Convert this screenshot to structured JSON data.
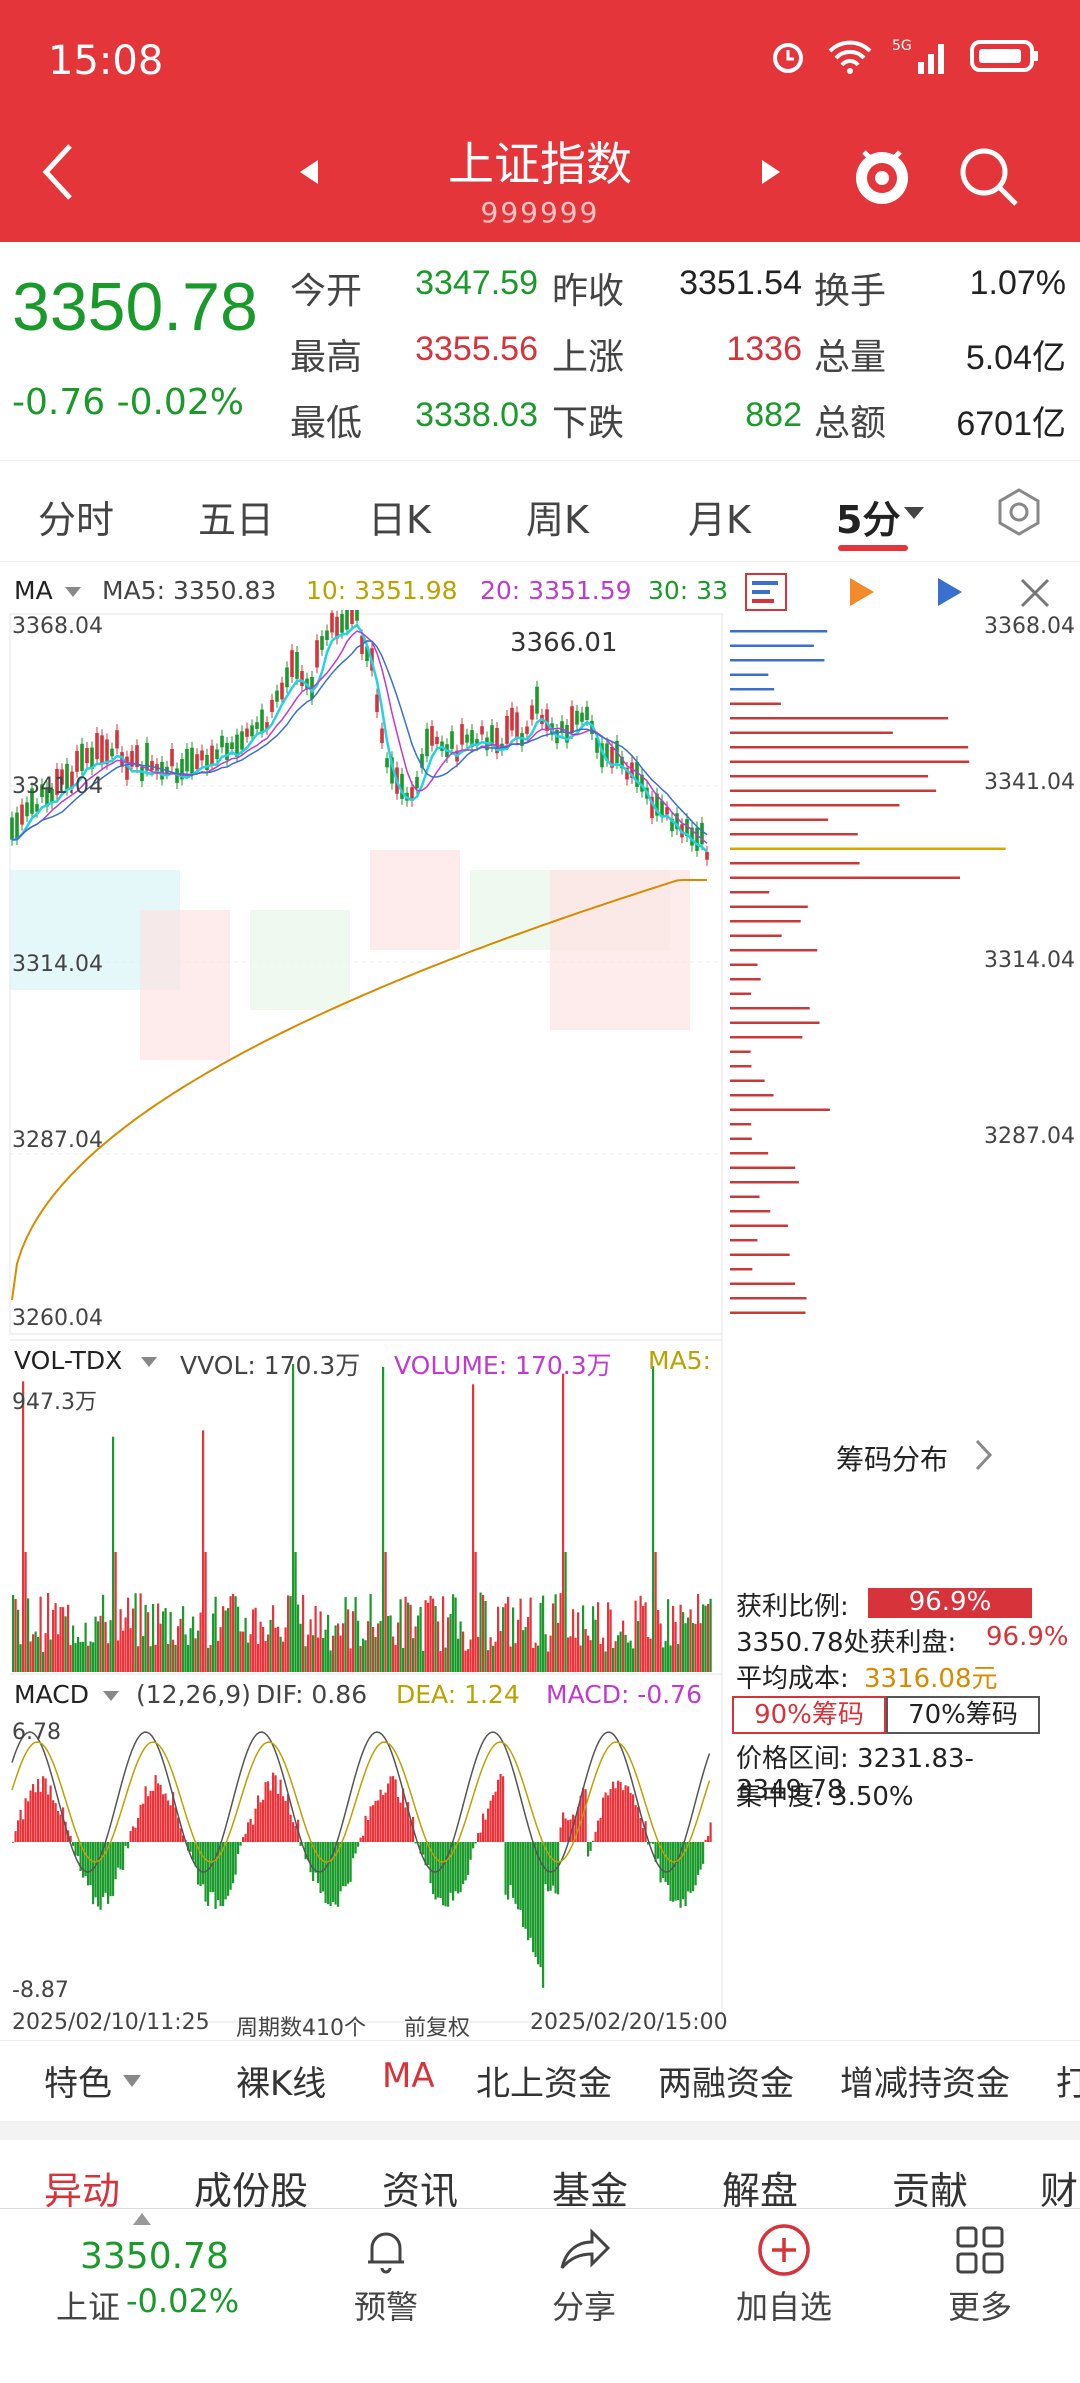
{
  "status": {
    "time": "15:08"
  },
  "header": {
    "title": "上证指数",
    "code": "999999"
  },
  "quote": {
    "price": "3350.78",
    "change": "-0.76 -0.02%",
    "rows": [
      {
        "l1": "今开",
        "v1": "3347.59",
        "l2": "昨收",
        "v2": "3351.54",
        "l3": "换手",
        "v3": "1.07%"
      },
      {
        "l1": "最高",
        "v1": "3355.56",
        "l2": "上涨",
        "v2": "1336",
        "l3": "总量",
        "v3": "5.04亿"
      },
      {
        "l1": "最低",
        "v1": "3338.03",
        "l2": "下跌",
        "v2": "882",
        "l3": "总额",
        "v3": "6701亿"
      }
    ]
  },
  "tabs": [
    "分时",
    "五日",
    "日K",
    "周K",
    "月K",
    "5分"
  ],
  "ma_row": {
    "sel": "MA",
    "ma5": "MA5: 3350.83",
    "ma10": "10: 3351.98",
    "ma20": "20: 3351.59",
    "ma30": "30: 33"
  },
  "price_axis": [
    "3368.04",
    "3341.04",
    "3314.04",
    "3287.04",
    "3260.04"
  ],
  "chart_peak": "3366.01",
  "vol_row": {
    "sel": "VOL-TDX",
    "vvol": "VVOL: 170.3万",
    "volume": "VOLUME: 170.3万",
    "ma5": "MA5:",
    "max": "947.3万"
  },
  "macd_row": {
    "sel": "MACD",
    "params": "(12,26,9)",
    "dif": "DIF: 0.86",
    "dea": "DEA: 1.24",
    "macd": "MACD: -0.76",
    "max": "6.78",
    "min": "-8.87"
  },
  "footer_row": {
    "start": "2025/02/10/11:25",
    "count": "周期数410个",
    "adjust": "前复权",
    "end": "2025/02/20/15:00"
  },
  "chip": {
    "title": "筹码分布",
    "profit_label": "获利比例:",
    "profit_pct": "96.9%",
    "profit_line": "3350.78处获利盘:",
    "profit_line_val": "96.9%",
    "avg_label": "平均成本:",
    "avg_val": "3316.08元",
    "btn90": "90%筹码",
    "btn70": "70%筹码",
    "range": "价格区间: 3231.83-3349.78",
    "concentration": "集中度: 3.50%",
    "axis": [
      "3368.04",
      "3341.04",
      "3314.04",
      "3287.04"
    ]
  },
  "menu1": {
    "feature": "特色",
    "items": [
      "裸K线",
      "MA",
      "北上资金",
      "两融资金",
      "增减持资金",
      "打"
    ]
  },
  "menu2": [
    "异动",
    "成份股",
    "资讯",
    "基金",
    "解盘",
    "贡献",
    "财"
  ],
  "bottom_nav": {
    "price": "3350.78",
    "name": "上证",
    "pct": "-0.02%",
    "items": [
      "预警",
      "分享",
      "加自选",
      "更多"
    ]
  },
  "colors": {
    "red": "#e4353a",
    "up": "#d6333a",
    "down": "#1a9a2a"
  }
}
